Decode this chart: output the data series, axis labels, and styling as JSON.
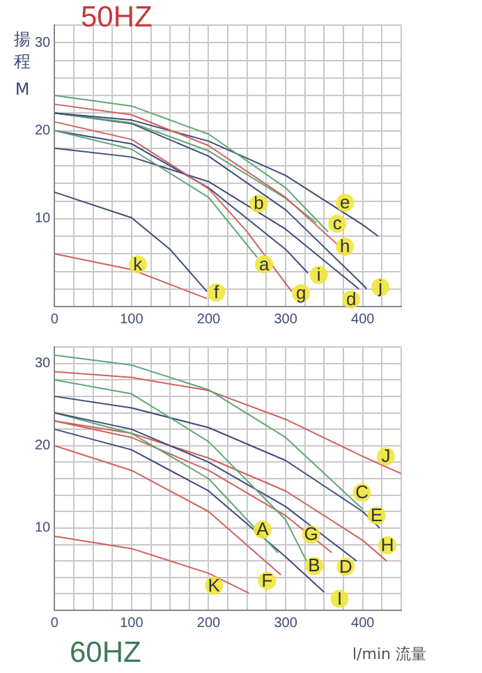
{
  "chart_data": [
    {
      "type": "line",
      "title": "50HZ",
      "ylabel": "揚程 M",
      "xlim": [
        0,
        450
      ],
      "ylim": [
        0,
        32
      ],
      "xticks": [
        {
          "value": 0,
          "label": "0"
        },
        {
          "value": 25,
          "label": null
        },
        {
          "value": 50,
          "label": null
        },
        {
          "value": 75,
          "label": null
        },
        100,
        {
          "value": 125,
          "label": null
        },
        {
          "value": 150,
          "label": null
        },
        {
          "value": 175,
          "label": null
        },
        200,
        {
          "value": 225,
          "label": null
        },
        {
          "value": 250,
          "label": null
        },
        {
          "value": 275,
          "label": null
        },
        300,
        {
          "value": 325,
          "label": null
        },
        {
          "value": 350,
          "label": null
        },
        {
          "value": 375,
          "label": null
        },
        400,
        {
          "value": 425,
          "label": null
        },
        {
          "value": 450,
          "label": null
        }
      ],
      "yticks": [
        {
          "value": 0,
          "label": null
        },
        {
          "value": 2,
          "label": null
        },
        {
          "value": 4,
          "label": null
        },
        {
          "value": 6,
          "label": null
        },
        {
          "value": 8,
          "label": null
        },
        10,
        {
          "value": 12,
          "label": null
        },
        {
          "value": 14,
          "label": null
        },
        {
          "value": 16,
          "label": null
        },
        {
          "value": 18,
          "label": null
        },
        20,
        {
          "value": 22,
          "label": null
        },
        {
          "value": 24,
          "label": null
        },
        {
          "value": 26,
          "label": null
        },
        {
          "value": 28,
          "label": null
        },
        30,
        {
          "value": 32,
          "label": null
        }
      ],
      "grid": true,
      "legend": false,
      "marker": "none",
      "line_style": "solid",
      "series": [
        {
          "color": "#5fa873",
          "x": [
            0,
            100,
            200,
            300,
            355
          ],
          "values": [
            24,
            22.8,
            19.6,
            13.5,
            8.5
          ]
        },
        {
          "color": "#d0605e",
          "x": [
            0,
            100,
            200,
            300,
            368
          ],
          "values": [
            23,
            21.8,
            18.3,
            12.4,
            7
          ]
        },
        {
          "color": "#3f4a78",
          "x": [
            0,
            100,
            200,
            300,
            400,
            420
          ],
          "values": [
            22,
            21.2,
            18.8,
            14.9,
            9.3,
            8
          ]
        },
        {
          "color": "#5fa873",
          "x": [
            0,
            100,
            200,
            300,
            340
          ],
          "values": [
            22,
            20.9,
            17.7,
            12.3,
            9.5
          ]
        },
        {
          "color": "#3f4a78",
          "x": [
            0,
            100,
            200,
            300,
            400,
            405
          ],
          "values": [
            22,
            20.8,
            17.1,
            11,
            2.5,
            2
          ]
        },
        {
          "color": "#d0605e",
          "x": [
            0,
            100,
            200,
            250,
            308
          ],
          "values": [
            21,
            19,
            13.4,
            8.5,
            1.7
          ]
        },
        {
          "color": "#5fa873",
          "x": [
            0,
            100,
            200,
            263
          ],
          "values": [
            20,
            17.9,
            12.4,
            5.6
          ]
        },
        {
          "color": "#3f4a78",
          "x": [
            0,
            100,
            200,
            300,
            329
          ],
          "values": [
            20,
            18.5,
            13.5,
            6.5,
            3.8
          ]
        },
        {
          "color": "#3f4a78",
          "x": [
            0,
            100,
            200,
            300,
            395
          ],
          "values": [
            18,
            17,
            14.2,
            8.8,
            2
          ]
        },
        {
          "color": "#3f4a78",
          "x": [
            0,
            100,
            150,
            198
          ],
          "values": [
            13,
            10.1,
            6.5,
            1.7
          ]
        },
        {
          "color": "#d0605e",
          "x": [
            0,
            100,
            198
          ],
          "values": [
            6,
            4.2,
            0.9
          ]
        }
      ],
      "annotations": [
        {
          "text": "k",
          "x": 108,
          "y": 4.8
        },
        {
          "text": "f",
          "x": 210,
          "y": 1.6
        },
        {
          "text": "a",
          "x": 272,
          "y": 4.8
        },
        {
          "text": "b",
          "x": 265,
          "y": 11.7
        },
        {
          "text": "g",
          "x": 320,
          "y": 1.5
        },
        {
          "text": "i",
          "x": 343,
          "y": 3.6
        },
        {
          "text": "d",
          "x": 385,
          "y": 0.8
        },
        {
          "text": "j",
          "x": 423,
          "y": 2.2
        },
        {
          "text": "c",
          "x": 367,
          "y": 9.4
        },
        {
          "text": "h",
          "x": 377,
          "y": 6.8
        },
        {
          "text": "e",
          "x": 377,
          "y": 11.8
        }
      ]
    },
    {
      "type": "line",
      "title": "60HZ",
      "xlabel": "l/min 流量",
      "xlim": [
        0,
        450
      ],
      "ylim": [
        0,
        32
      ],
      "xticks": [
        {
          "value": 0,
          "label": "0"
        },
        {
          "value": 25,
          "label": null
        },
        {
          "value": 50,
          "label": null
        },
        {
          "value": 75,
          "label": null
        },
        100,
        {
          "value": 125,
          "label": null
        },
        {
          "value": 150,
          "label": null
        },
        {
          "value": 175,
          "label": null
        },
        200,
        {
          "value": 225,
          "label": null
        },
        {
          "value": 250,
          "label": null
        },
        {
          "value": 275,
          "label": null
        },
        300,
        {
          "value": 325,
          "label": null
        },
        {
          "value": 350,
          "label": null
        },
        {
          "value": 375,
          "label": null
        },
        400,
        {
          "value": 425,
          "label": null
        },
        {
          "value": 450,
          "label": null
        }
      ],
      "yticks": [
        {
          "value": 0,
          "label": null
        },
        {
          "value": 2,
          "label": null
        },
        {
          "value": 4,
          "label": null
        },
        {
          "value": 6,
          "label": null
        },
        {
          "value": 8,
          "label": null
        },
        10,
        {
          "value": 12,
          "label": null
        },
        {
          "value": 14,
          "label": null
        },
        {
          "value": 16,
          "label": null
        },
        {
          "value": 18,
          "label": null
        },
        20,
        {
          "value": 22,
          "label": null
        },
        {
          "value": 24,
          "label": null
        },
        {
          "value": 26,
          "label": null
        },
        {
          "value": 28,
          "label": null
        },
        30,
        {
          "value": 32,
          "label": null
        }
      ],
      "grid": true,
      "legend": false,
      "marker": "none",
      "line_style": "solid",
      "series": [
        {
          "color": "#5fa873",
          "x": [
            0,
            100,
            200,
            300,
            400
          ],
          "values": [
            31,
            29.8,
            26.8,
            21,
            12.3
          ]
        },
        {
          "color": "#d0605e",
          "x": [
            0,
            100,
            200,
            300,
            400,
            450
          ],
          "values": [
            29,
            28.3,
            26.7,
            23.2,
            18.7,
            16.6
          ]
        },
        {
          "color": "#5fa873",
          "x": [
            0,
            100,
            200,
            300,
            327
          ],
          "values": [
            28,
            26.3,
            20.5,
            11,
            6
          ]
        },
        {
          "color": "#3f4a78",
          "x": [
            0,
            100,
            200,
            300,
            400,
            422
          ],
          "values": [
            26,
            24.6,
            22.2,
            18.2,
            12,
            10
          ]
        },
        {
          "color": "#3f4a78",
          "x": [
            0,
            100,
            200,
            300,
            392
          ],
          "values": [
            24,
            22,
            18,
            12.6,
            6
          ]
        },
        {
          "color": "#5fa873",
          "x": [
            0,
            100,
            200,
            290
          ],
          "values": [
            24,
            21.5,
            16,
            7
          ]
        },
        {
          "color": "#d0605e",
          "x": [
            0,
            100,
            200,
            300,
            400,
            431
          ],
          "values": [
            23,
            21.5,
            18.5,
            14.5,
            8.5,
            6
          ]
        },
        {
          "color": "#d0605e",
          "x": [
            0,
            100,
            200,
            300,
            360
          ],
          "values": [
            23,
            21,
            17,
            11.5,
            7
          ]
        },
        {
          "color": "#3f4a78",
          "x": [
            0,
            100,
            200,
            300,
            350
          ],
          "values": [
            22,
            19.5,
            14.5,
            6.5,
            2.2
          ]
        },
        {
          "color": "#d0605e",
          "x": [
            0,
            100,
            200,
            294
          ],
          "values": [
            20,
            17,
            12,
            4.3
          ]
        },
        {
          "color": "#d0605e",
          "x": [
            0,
            100,
            200,
            252
          ],
          "values": [
            9,
            7.5,
            4.5,
            2.1
          ]
        }
      ],
      "annotations": [
        {
          "text": "J",
          "x": 430,
          "y": 18.7
        },
        {
          "text": "C",
          "x": 399,
          "y": 14.3
        },
        {
          "text": "E",
          "x": 418,
          "y": 11.5
        },
        {
          "text": "H",
          "x": 432,
          "y": 7.9
        },
        {
          "text": "G",
          "x": 333,
          "y": 9.2
        },
        {
          "text": "A",
          "x": 270,
          "y": 9.8
        },
        {
          "text": "B",
          "x": 337,
          "y": 5.4
        },
        {
          "text": "D",
          "x": 378,
          "y": 5.3
        },
        {
          "text": "F",
          "x": 276,
          "y": 3.6
        },
        {
          "text": "K",
          "x": 207,
          "y": 3
        },
        {
          "text": "I",
          "x": 370,
          "y": 1.4
        }
      ]
    }
  ]
}
